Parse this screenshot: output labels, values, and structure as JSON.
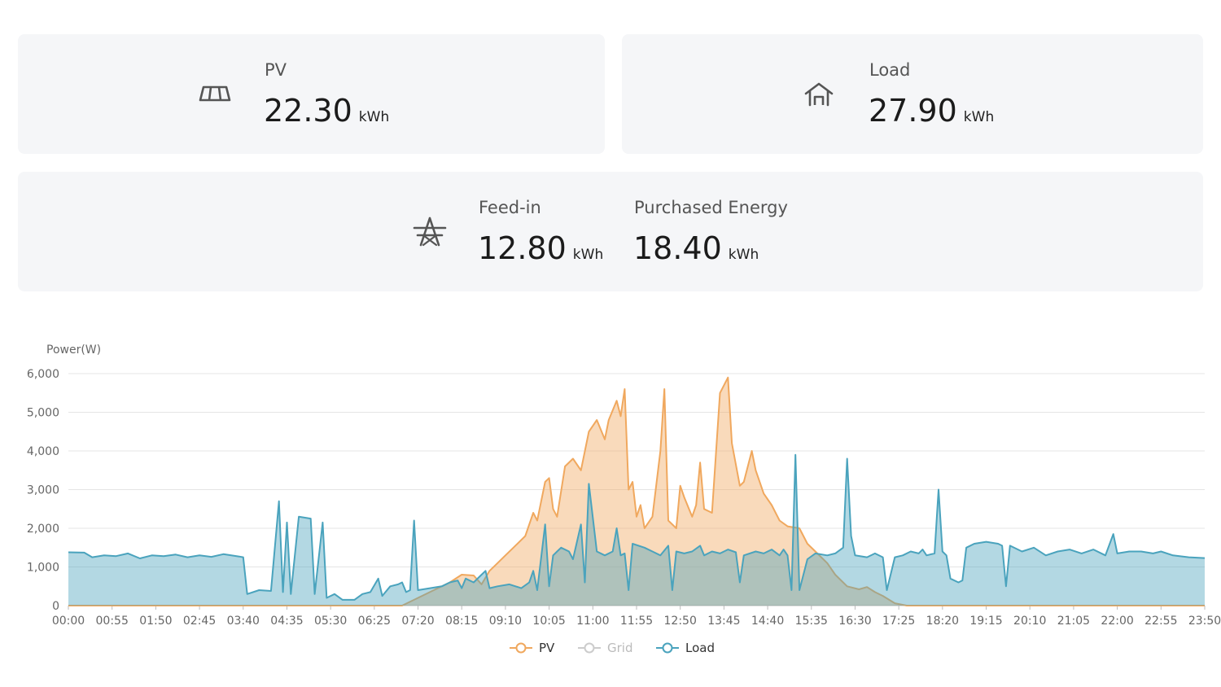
{
  "cards": {
    "pv": {
      "label": "PV",
      "value": "22.30",
      "unit": "kWh",
      "icon": "solar-panel-icon"
    },
    "load": {
      "label": "Load",
      "value": "27.90",
      "unit": "kWh",
      "icon": "house-icon"
    },
    "feed_in": {
      "label": "Feed-in",
      "value": "12.80",
      "unit": "kWh",
      "icon": "power-tower-icon"
    },
    "purchased": {
      "label": "Purchased Energy",
      "value": "18.40",
      "unit": "kWh"
    }
  },
  "colors": {
    "pv": "#f0a85e",
    "grid": "#c4c4c4",
    "load": "#4aa3bd",
    "card_bg": "#f5f6f8"
  },
  "chart_data": {
    "type": "area",
    "ylabel": "Power(W)",
    "ylim": [
      0,
      6000
    ],
    "yticks": [
      0,
      1000,
      2000,
      3000,
      4000,
      5000,
      6000
    ],
    "ytick_labels": [
      "0",
      "1,000",
      "2,000",
      "3,000",
      "4,000",
      "5,000",
      "6,000"
    ],
    "xlim": [
      "00:00",
      "23:50"
    ],
    "xtick_labels": [
      "00:00",
      "00:55",
      "01:50",
      "02:45",
      "03:40",
      "04:35",
      "05:30",
      "06:25",
      "07:20",
      "08:15",
      "09:10",
      "10:05",
      "11:00",
      "11:55",
      "12:50",
      "13:45",
      "14:40",
      "15:35",
      "16:30",
      "17:25",
      "18:20",
      "19:15",
      "20:10",
      "21:05",
      "22:00",
      "22:55",
      "23:50"
    ],
    "grid": true,
    "legend_position": "bottom-center",
    "series": [
      {
        "name": "PV",
        "color": "#f0a85e",
        "visible": true,
        "points": [
          [
            "00:00",
            0
          ],
          [
            "07:00",
            0
          ],
          [
            "07:20",
            200
          ],
          [
            "07:45",
            450
          ],
          [
            "08:00",
            600
          ],
          [
            "08:15",
            800
          ],
          [
            "08:30",
            780
          ],
          [
            "08:40",
            550
          ],
          [
            "08:50",
            900
          ],
          [
            "09:00",
            1100
          ],
          [
            "09:10",
            1300
          ],
          [
            "09:20",
            1500
          ],
          [
            "09:35",
            1800
          ],
          [
            "09:45",
            2400
          ],
          [
            "09:50",
            2200
          ],
          [
            "10:00",
            3200
          ],
          [
            "10:05",
            3300
          ],
          [
            "10:10",
            2500
          ],
          [
            "10:15",
            2300
          ],
          [
            "10:25",
            3600
          ],
          [
            "10:35",
            3800
          ],
          [
            "10:45",
            3500
          ],
          [
            "10:55",
            4500
          ],
          [
            "11:05",
            4800
          ],
          [
            "11:15",
            4300
          ],
          [
            "11:20",
            4800
          ],
          [
            "11:30",
            5300
          ],
          [
            "11:35",
            4900
          ],
          [
            "11:40",
            5600
          ],
          [
            "11:45",
            3000
          ],
          [
            "11:50",
            3200
          ],
          [
            "11:55",
            2300
          ],
          [
            "12:00",
            2600
          ],
          [
            "12:05",
            2000
          ],
          [
            "12:15",
            2300
          ],
          [
            "12:25",
            4000
          ],
          [
            "12:30",
            5600
          ],
          [
            "12:35",
            2200
          ],
          [
            "12:45",
            2000
          ],
          [
            "12:50",
            3100
          ],
          [
            "12:55",
            2800
          ],
          [
            "13:05",
            2300
          ],
          [
            "13:10",
            2600
          ],
          [
            "13:15",
            3700
          ],
          [
            "13:20",
            2500
          ],
          [
            "13:30",
            2400
          ],
          [
            "13:40",
            5500
          ],
          [
            "13:50",
            5900
          ],
          [
            "13:55",
            4200
          ],
          [
            "14:05",
            3100
          ],
          [
            "14:10",
            3200
          ],
          [
            "14:20",
            4000
          ],
          [
            "14:25",
            3500
          ],
          [
            "14:35",
            2900
          ],
          [
            "14:45",
            2600
          ],
          [
            "14:55",
            2200
          ],
          [
            "15:05",
            2050
          ],
          [
            "15:20",
            2000
          ],
          [
            "15:30",
            1600
          ],
          [
            "15:40",
            1400
          ],
          [
            "15:55",
            1100
          ],
          [
            "16:05",
            800
          ],
          [
            "16:20",
            500
          ],
          [
            "16:35",
            420
          ],
          [
            "16:45",
            480
          ],
          [
            "16:55",
            350
          ],
          [
            "17:05",
            250
          ],
          [
            "17:20",
            60
          ],
          [
            "17:35",
            0
          ],
          [
            "23:50",
            0
          ]
        ]
      },
      {
        "name": "Grid",
        "color": "#c4c4c4",
        "visible": false,
        "points": []
      },
      {
        "name": "Load",
        "color": "#4aa3bd",
        "visible": true,
        "points": [
          [
            "00:00",
            1380
          ],
          [
            "00:20",
            1370
          ],
          [
            "00:30",
            1250
          ],
          [
            "00:45",
            1300
          ],
          [
            "01:00",
            1280
          ],
          [
            "01:15",
            1350
          ],
          [
            "01:30",
            1220
          ],
          [
            "01:45",
            1300
          ],
          [
            "02:00",
            1280
          ],
          [
            "02:15",
            1320
          ],
          [
            "02:30",
            1250
          ],
          [
            "02:45",
            1300
          ],
          [
            "03:00",
            1260
          ],
          [
            "03:15",
            1330
          ],
          [
            "03:35",
            1270
          ],
          [
            "03:40",
            1250
          ],
          [
            "03:45",
            300
          ],
          [
            "04:00",
            400
          ],
          [
            "04:15",
            380
          ],
          [
            "04:25",
            2700
          ],
          [
            "04:30",
            350
          ],
          [
            "04:35",
            2150
          ],
          [
            "04:40",
            300
          ],
          [
            "04:50",
            2300
          ],
          [
            "05:05",
            2250
          ],
          [
            "05:10",
            300
          ],
          [
            "05:20",
            2150
          ],
          [
            "05:25",
            200
          ],
          [
            "05:35",
            300
          ],
          [
            "05:45",
            150
          ],
          [
            "06:00",
            150
          ],
          [
            "06:10",
            300
          ],
          [
            "06:20",
            350
          ],
          [
            "06:30",
            700
          ],
          [
            "06:35",
            250
          ],
          [
            "06:45",
            500
          ],
          [
            "06:55",
            550
          ],
          [
            "07:00",
            600
          ],
          [
            "07:05",
            350
          ],
          [
            "07:10",
            400
          ],
          [
            "07:15",
            2200
          ],
          [
            "07:20",
            400
          ],
          [
            "07:35",
            450
          ],
          [
            "07:50",
            500
          ],
          [
            "08:00",
            600
          ],
          [
            "08:10",
            650
          ],
          [
            "08:15",
            450
          ],
          [
            "08:20",
            700
          ],
          [
            "08:30",
            600
          ],
          [
            "08:40",
            800
          ],
          [
            "08:45",
            900
          ],
          [
            "08:50",
            450
          ],
          [
            "09:00",
            500
          ],
          [
            "09:15",
            550
          ],
          [
            "09:30",
            450
          ],
          [
            "09:40",
            600
          ],
          [
            "09:45",
            900
          ],
          [
            "09:50",
            400
          ],
          [
            "10:00",
            2100
          ],
          [
            "10:05",
            500
          ],
          [
            "10:10",
            1300
          ],
          [
            "10:15",
            1400
          ],
          [
            "10:20",
            1500
          ],
          [
            "10:30",
            1400
          ],
          [
            "10:35",
            1200
          ],
          [
            "10:45",
            2100
          ],
          [
            "10:50",
            600
          ],
          [
            "10:55",
            3150
          ],
          [
            "11:05",
            1400
          ],
          [
            "11:15",
            1300
          ],
          [
            "11:25",
            1400
          ],
          [
            "11:30",
            2000
          ],
          [
            "11:35",
            1300
          ],
          [
            "11:40",
            1350
          ],
          [
            "11:45",
            400
          ],
          [
            "11:50",
            1600
          ],
          [
            "12:05",
            1500
          ],
          [
            "12:15",
            1400
          ],
          [
            "12:25",
            1300
          ],
          [
            "12:35",
            1550
          ],
          [
            "12:40",
            400
          ],
          [
            "12:45",
            1400
          ],
          [
            "12:55",
            1350
          ],
          [
            "13:05",
            1400
          ],
          [
            "13:15",
            1550
          ],
          [
            "13:20",
            1300
          ],
          [
            "13:30",
            1400
          ],
          [
            "13:40",
            1350
          ],
          [
            "13:50",
            1450
          ],
          [
            "14:00",
            1380
          ],
          [
            "14:05",
            600
          ],
          [
            "14:10",
            1300
          ],
          [
            "14:25",
            1400
          ],
          [
            "14:35",
            1350
          ],
          [
            "14:45",
            1450
          ],
          [
            "14:55",
            1300
          ],
          [
            "15:00",
            1450
          ],
          [
            "15:05",
            1300
          ],
          [
            "15:10",
            400
          ],
          [
            "15:15",
            3900
          ],
          [
            "15:20",
            400
          ],
          [
            "15:30",
            1200
          ],
          [
            "15:40",
            1350
          ],
          [
            "15:55",
            1300
          ],
          [
            "16:05",
            1350
          ],
          [
            "16:15",
            1500
          ],
          [
            "16:20",
            3800
          ],
          [
            "16:25",
            1800
          ],
          [
            "16:30",
            1300
          ],
          [
            "16:45",
            1250
          ],
          [
            "16:55",
            1350
          ],
          [
            "17:05",
            1250
          ],
          [
            "17:10",
            400
          ],
          [
            "17:20",
            1250
          ],
          [
            "17:30",
            1300
          ],
          [
            "17:40",
            1400
          ],
          [
            "17:50",
            1350
          ],
          [
            "17:55",
            1450
          ],
          [
            "18:00",
            1300
          ],
          [
            "18:10",
            1350
          ],
          [
            "18:15",
            3000
          ],
          [
            "18:20",
            1400
          ],
          [
            "18:25",
            1300
          ],
          [
            "18:30",
            700
          ],
          [
            "18:40",
            600
          ],
          [
            "18:45",
            650
          ],
          [
            "18:50",
            1500
          ],
          [
            "19:00",
            1600
          ],
          [
            "19:15",
            1650
          ],
          [
            "19:30",
            1600
          ],
          [
            "19:35",
            1550
          ],
          [
            "19:40",
            500
          ],
          [
            "19:45",
            1550
          ],
          [
            "20:00",
            1400
          ],
          [
            "20:15",
            1500
          ],
          [
            "20:30",
            1300
          ],
          [
            "20:45",
            1400
          ],
          [
            "21:00",
            1450
          ],
          [
            "21:15",
            1350
          ],
          [
            "21:30",
            1450
          ],
          [
            "21:45",
            1300
          ],
          [
            "21:55",
            1850
          ],
          [
            "22:00",
            1350
          ],
          [
            "22:15",
            1400
          ],
          [
            "22:30",
            1400
          ],
          [
            "22:45",
            1350
          ],
          [
            "22:55",
            1400
          ],
          [
            "23:10",
            1300
          ],
          [
            "23:30",
            1250
          ],
          [
            "23:50",
            1230
          ]
        ]
      }
    ]
  }
}
